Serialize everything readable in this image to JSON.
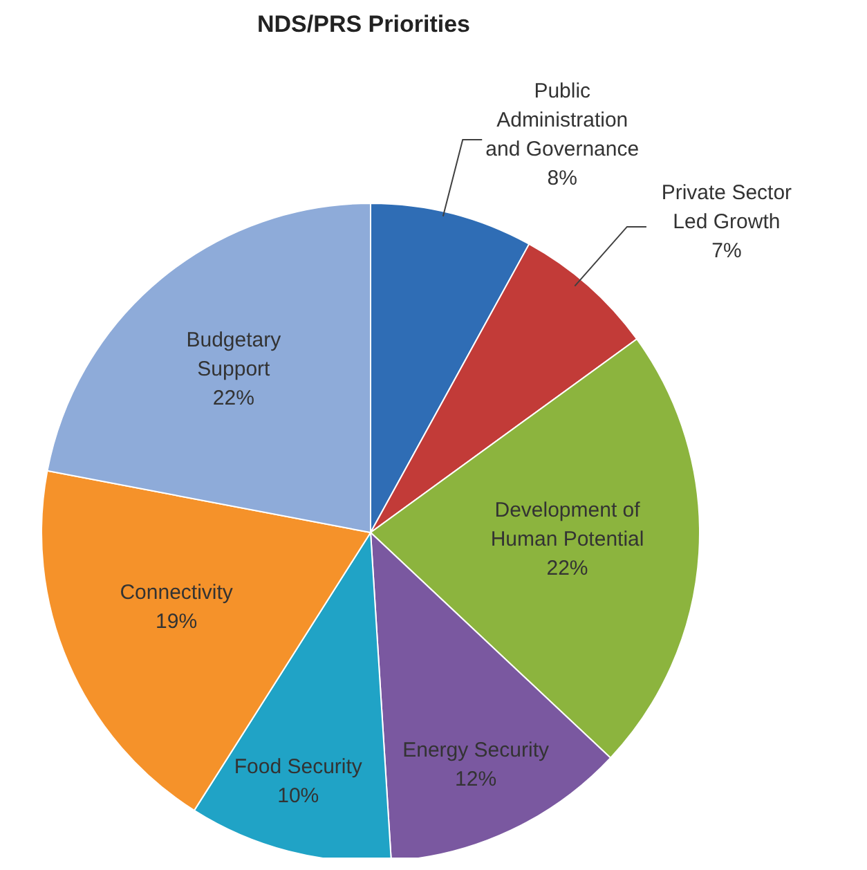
{
  "chart_data": {
    "type": "pie",
    "title": "NDS/PRS Priorities",
    "categories": [
      "Public Administration and Governance",
      "Private Sector Led Growth",
      "Development of Human Potential",
      "Energy Security",
      "Food Security",
      "Connectivity",
      "Budgetary Support"
    ],
    "values": [
      8,
      7,
      22,
      12,
      10,
      19,
      22
    ],
    "colors": [
      "#2f6db5",
      "#c23b38",
      "#8cb43e",
      "#7a58a0",
      "#20a3c6",
      "#f5922a",
      "#8eabd9"
    ],
    "value_labels": [
      "8%",
      "7%",
      "22%",
      "12%",
      "10%",
      "19%",
      "22%"
    ]
  }
}
